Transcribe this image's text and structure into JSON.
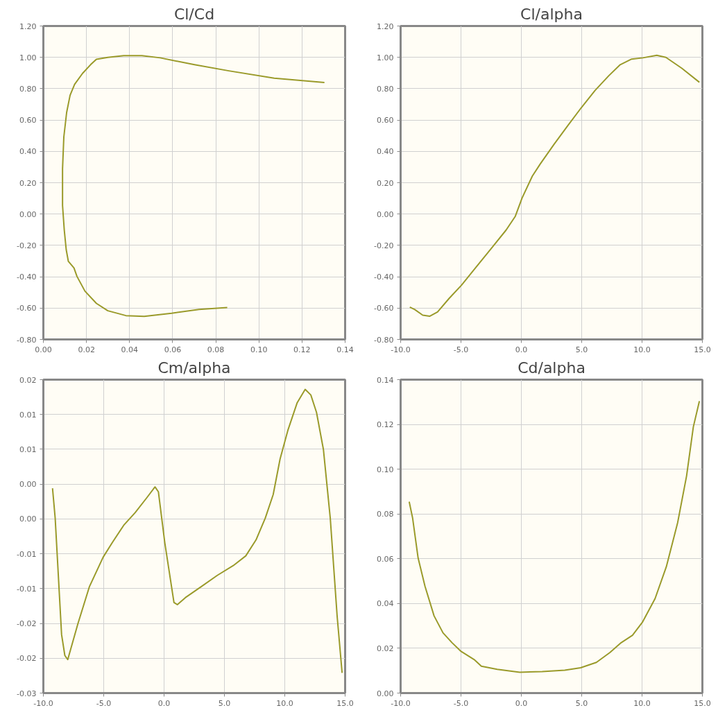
{
  "chart_data": [
    {
      "type": "line",
      "title": "Cl/Cd",
      "grid": true,
      "xlim": [
        0,
        0.14
      ],
      "ylim": [
        -0.8,
        1.2
      ],
      "xticks": [
        {
          "value": 0,
          "label": "0.00"
        },
        {
          "value": 0.02,
          "label": "0.02"
        },
        {
          "value": 0.04,
          "label": "0.04"
        },
        {
          "value": 0.06,
          "label": "0.06"
        },
        {
          "value": 0.08,
          "label": "0.08"
        },
        {
          "value": 0.1,
          "label": "0.10"
        },
        {
          "value": 0.12,
          "label": "0.12"
        },
        {
          "value": 0.14,
          "label": "0.14"
        }
      ],
      "yticks": [
        {
          "value": -0.8,
          "label": "-0.80"
        },
        {
          "value": -0.6,
          "label": "-0.60"
        },
        {
          "value": -0.4,
          "label": "-0.40"
        },
        {
          "value": -0.2,
          "label": "-0.20"
        },
        {
          "value": 0,
          "label": "0.00"
        },
        {
          "value": 0.2,
          "label": "0.20"
        },
        {
          "value": 0.4,
          "label": "0.40"
        },
        {
          "value": 0.6,
          "label": "0.60"
        },
        {
          "value": 0.8,
          "label": "0.80"
        },
        {
          "value": 1.0,
          "label": "1.00"
        },
        {
          "value": 1.2,
          "label": "1.20"
        }
      ],
      "series": [
        {
          "color": "#9a9a2a",
          "x": [
            0.0853,
            0.0722,
            0.0595,
            0.0468,
            0.0383,
            0.0299,
            0.0246,
            0.0193,
            0.0156,
            0.0142,
            0.0116,
            0.0106,
            0.0097,
            0.0089,
            0.0089,
            0.0095,
            0.0108,
            0.0124,
            0.0145,
            0.0182,
            0.0219,
            0.0246,
            0.0299,
            0.0373,
            0.0457,
            0.0542,
            0.0701,
            0.086,
            0.1071,
            0.1304
          ],
          "values": [
            -0.597,
            -0.609,
            -0.633,
            -0.653,
            -0.648,
            -0.617,
            -0.57,
            -0.492,
            -0.398,
            -0.344,
            -0.302,
            -0.227,
            -0.102,
            0.055,
            0.289,
            0.492,
            0.648,
            0.758,
            0.828,
            0.898,
            0.953,
            0.988,
            1.0,
            1.011,
            1.011,
            0.997,
            0.953,
            0.914,
            0.867,
            0.839
          ]
        }
      ]
    },
    {
      "type": "line",
      "title": "Cl/alpha",
      "grid": true,
      "xlim": [
        -10,
        15
      ],
      "ylim": [
        -0.8,
        1.2
      ],
      "xticks": [
        {
          "value": -10,
          "label": "-10.0"
        },
        {
          "value": -5,
          "label": "-5.0"
        },
        {
          "value": 0,
          "label": "0.0"
        },
        {
          "value": 5,
          "label": "5.0"
        },
        {
          "value": 10,
          "label": "10.0"
        },
        {
          "value": 15,
          "label": "15.0"
        }
      ],
      "yticks": [
        {
          "value": -0.8,
          "label": "-0.80"
        },
        {
          "value": -0.6,
          "label": "-0.60"
        },
        {
          "value": -0.4,
          "label": "-0.40"
        },
        {
          "value": -0.2,
          "label": "-0.20"
        },
        {
          "value": 0,
          "label": "0.00"
        },
        {
          "value": 0.2,
          "label": "0.20"
        },
        {
          "value": 0.4,
          "label": "0.40"
        },
        {
          "value": 0.6,
          "label": "0.60"
        },
        {
          "value": 0.8,
          "label": "0.80"
        },
        {
          "value": 1.0,
          "label": "1.00"
        },
        {
          "value": 1.2,
          "label": "1.20"
        }
      ],
      "series": [
        {
          "color": "#9a9a2a",
          "x": [
            -9.24,
            -8.83,
            -8.17,
            -7.6,
            -6.94,
            -5.99,
            -4.95,
            -3.72,
            -2.4,
            -1.26,
            -0.51,
            0.06,
            0.91,
            1.57,
            2.71,
            3.84,
            4.98,
            6.11,
            7.25,
            8.19,
            9.14,
            10.08,
            11.22,
            11.98,
            13.3,
            14.75
          ],
          "values": [
            -0.594,
            -0.609,
            -0.645,
            -0.652,
            -0.625,
            -0.539,
            -0.453,
            -0.336,
            -0.211,
            -0.102,
            -0.016,
            0.102,
            0.242,
            0.32,
            0.445,
            0.563,
            0.68,
            0.789,
            0.883,
            0.953,
            0.989,
            0.997,
            1.013,
            1.0,
            0.93,
            0.841
          ]
        }
      ]
    },
    {
      "type": "line",
      "title": "Cm/alpha",
      "grid": true,
      "xlim": [
        -10,
        15
      ],
      "ylim": [
        -0.025,
        0.02
      ],
      "xticks": [
        {
          "value": -10,
          "label": "-10.0"
        },
        {
          "value": -5,
          "label": "-5.0"
        },
        {
          "value": 0,
          "label": "0.0"
        },
        {
          "value": 5,
          "label": "5.0"
        },
        {
          "value": 10,
          "label": "10.0"
        },
        {
          "value": 15,
          "label": "15.0"
        }
      ],
      "yticks": [
        {
          "value": -0.025,
          "label": "-0.03"
        },
        {
          "value": -0.02,
          "label": "-0.02"
        },
        {
          "value": -0.015,
          "label": "-0.02"
        },
        {
          "value": -0.01,
          "label": "-0.01"
        },
        {
          "value": -0.005,
          "label": "-0.01"
        },
        {
          "value": 0,
          "label": "0.00"
        },
        {
          "value": 0.005,
          "label": "0.00"
        },
        {
          "value": 0.01,
          "label": "0.01"
        },
        {
          "value": 0.015,
          "label": "0.01"
        },
        {
          "value": 0.02,
          "label": "0.02"
        }
      ],
      "series": [
        {
          "color": "#9a9a2a",
          "x": [
            -9.24,
            -9.02,
            -8.49,
            -8.22,
            -7.98,
            -7.13,
            -6.18,
            -5.05,
            -4.29,
            -3.34,
            -2.4,
            -1.45,
            -0.75,
            -0.47,
            0.06,
            0.82,
            1.1,
            1.76,
            3.09,
            4.41,
            5.73,
            6.77,
            7.62,
            8.38,
            9.04,
            9.61,
            10.27,
            11.03,
            11.69,
            12.16,
            12.63,
            13.2,
            13.77,
            14.34,
            14.75
          ],
          "values": [
            0.0044,
            0.0001,
            -0.0166,
            -0.0196,
            -0.0202,
            -0.015,
            -0.0097,
            -0.0055,
            -0.0034,
            -0.0009,
            0.0009,
            0.003,
            0.0046,
            0.0039,
            -0.0034,
            -0.012,
            -0.0123,
            -0.0113,
            -0.0097,
            -0.0081,
            -0.0067,
            -0.0053,
            -0.003,
            0.0001,
            0.0035,
            0.0086,
            0.0128,
            0.0167,
            0.0186,
            0.0178,
            0.0153,
            0.01,
            0.0001,
            -0.014,
            -0.0221
          ]
        }
      ]
    },
    {
      "type": "line",
      "title": "Cd/alpha",
      "grid": true,
      "xlim": [
        -10,
        15
      ],
      "ylim": [
        0,
        0.14
      ],
      "xticks": [
        {
          "value": -10,
          "label": "-10.0"
        },
        {
          "value": -5,
          "label": "-5.0"
        },
        {
          "value": 0,
          "label": "0.0"
        },
        {
          "value": 5,
          "label": "5.0"
        },
        {
          "value": 10,
          "label": "10.0"
        },
        {
          "value": 15,
          "label": "15.0"
        }
      ],
      "yticks": [
        {
          "value": 0,
          "label": "0.00"
        },
        {
          "value": 0.02,
          "label": "0.02"
        },
        {
          "value": 0.04,
          "label": "0.04"
        },
        {
          "value": 0.06,
          "label": "0.06"
        },
        {
          "value": 0.08,
          "label": "0.08"
        },
        {
          "value": 0.1,
          "label": "0.10"
        },
        {
          "value": 0.12,
          "label": "0.12"
        },
        {
          "value": 0.14,
          "label": "0.14"
        }
      ],
      "series": [
        {
          "color": "#9a9a2a",
          "x": [
            -9.29,
            -9.01,
            -8.55,
            -7.98,
            -7.23,
            -6.49,
            -5.74,
            -4.99,
            -3.87,
            -3.31,
            -2.0,
            -0.13,
            1.73,
            3.6,
            4.91,
            6.22,
            7.34,
            8.27,
            9.21,
            10.05,
            11.08,
            12.01,
            12.95,
            13.69,
            14.25,
            14.75
          ],
          "values": [
            0.0855,
            0.0783,
            0.0603,
            0.0477,
            0.0345,
            0.0269,
            0.0225,
            0.0186,
            0.0148,
            0.012,
            0.0106,
            0.0093,
            0.0096,
            0.0102,
            0.0113,
            0.0137,
            0.0181,
            0.0225,
            0.0258,
            0.0318,
            0.0422,
            0.0564,
            0.0761,
            0.097,
            0.1189,
            0.1304
          ]
        }
      ]
    }
  ]
}
